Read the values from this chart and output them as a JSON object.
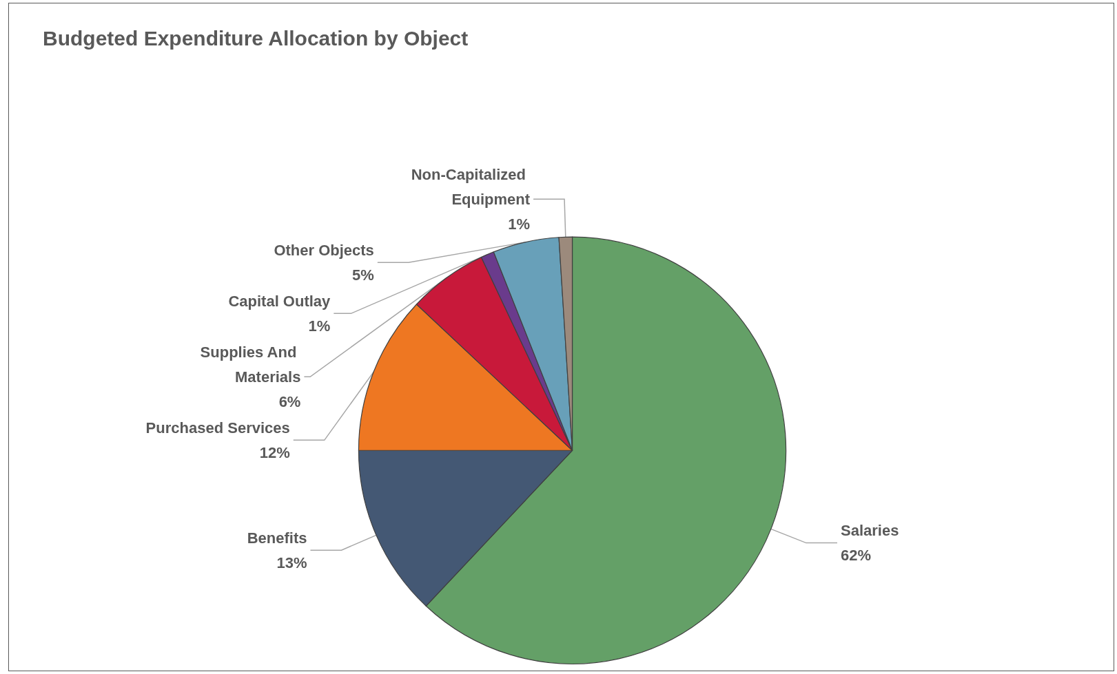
{
  "chart_data": {
    "type": "pie",
    "title": "Budgeted Expenditure Allocation by Object",
    "categories": [
      "Salaries",
      "Benefits",
      "Purchased Services",
      "Supplies And Materials",
      "Capital Outlay",
      "Other Objects",
      "Non-Capitalized Equipment"
    ],
    "values": [
      62,
      13,
      12,
      6,
      1,
      5,
      1
    ],
    "colors": [
      "#64a067",
      "#445874",
      "#ee7722",
      "#c8193a",
      "#6a3b8c",
      "#68a0b9",
      "#9c8a7c"
    ],
    "value_labels": [
      "62%",
      "13%",
      "12%",
      "6%",
      "1%",
      "5%",
      "1%"
    ],
    "legend": false
  }
}
